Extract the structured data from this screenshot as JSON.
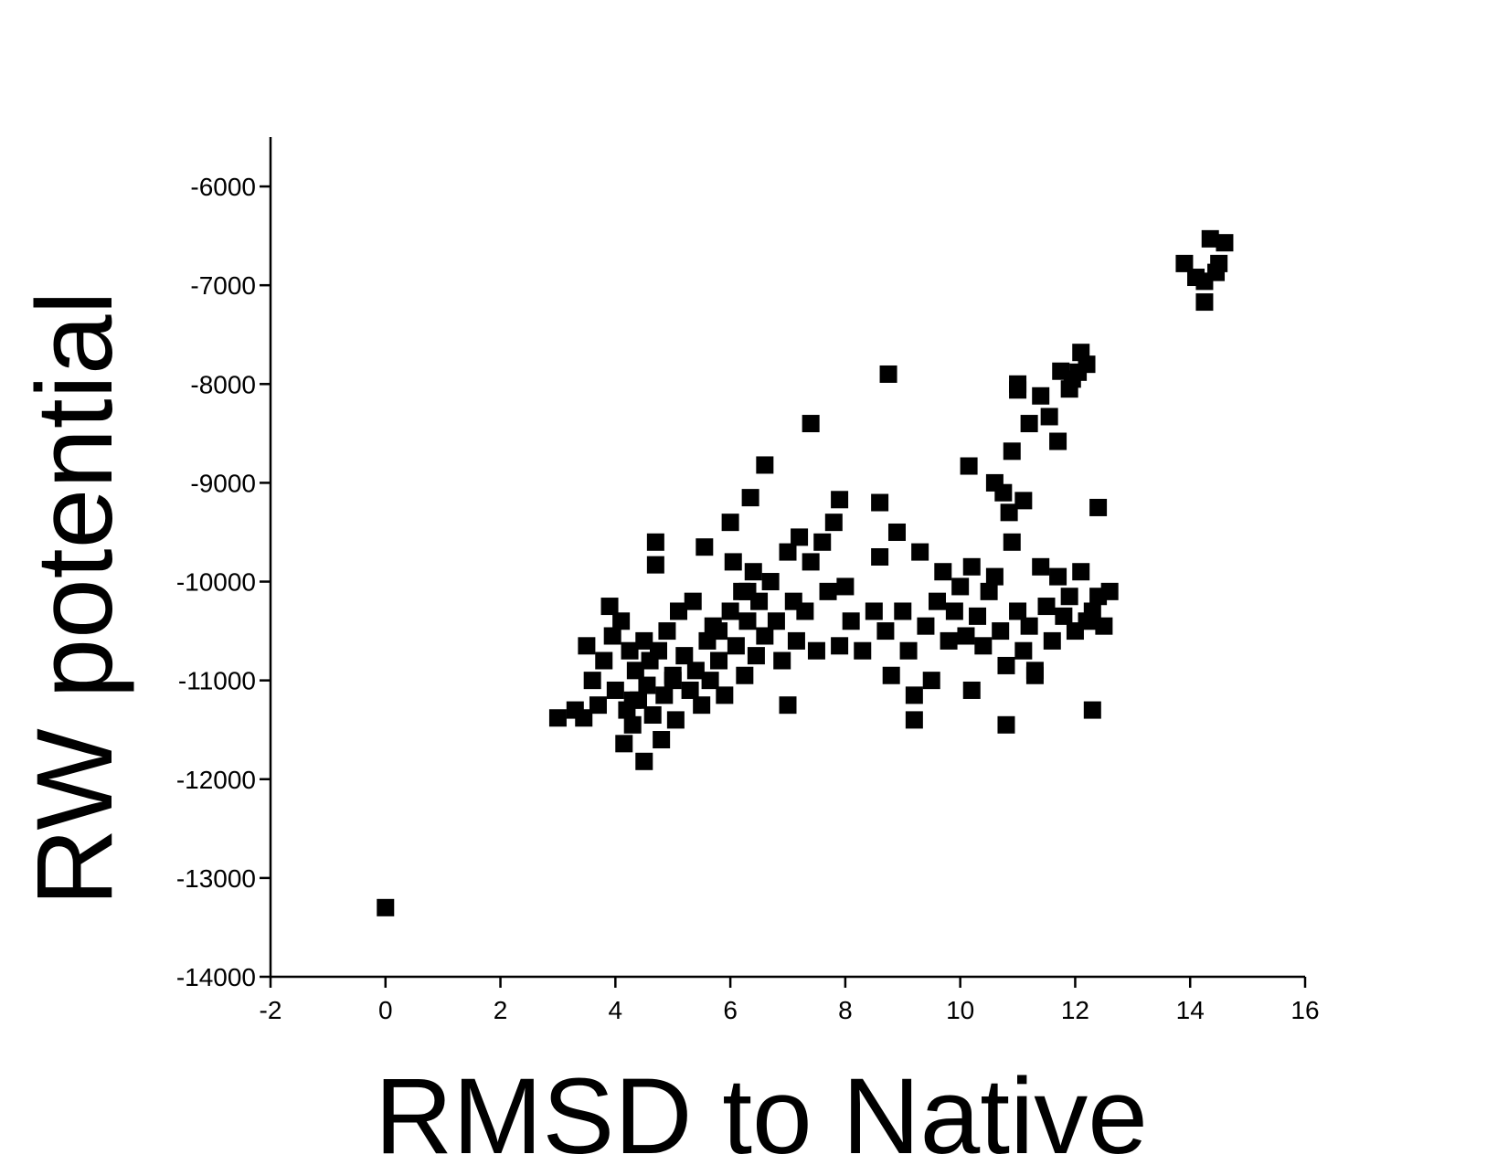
{
  "chart_data": {
    "type": "scatter",
    "x_label": "RMSD to Native",
    "y_label": "RW potential",
    "color": "#000000",
    "xlim": [
      -2,
      16
    ],
    "ylim": [
      -14000,
      -5500
    ],
    "xticks": [
      -2,
      0,
      2,
      4,
      6,
      8,
      10,
      12,
      14,
      16
    ],
    "yticks": [
      -14000,
      -13000,
      -12000,
      -11000,
      -10000,
      -9000,
      -8000,
      -7000,
      -6000
    ],
    "x": [
      0,
      8.75,
      7.4,
      6.6,
      10.15,
      6.35,
      7.9,
      8.6,
      12.4,
      6.0,
      5.55,
      4.7,
      4.7,
      3.0,
      3.3,
      3.45,
      4.15,
      4.5,
      4.8,
      3.9,
      10.9,
      11.0,
      11.0,
      11.2,
      11.4,
      11.55,
      11.7,
      11.75,
      11.9,
      12.05,
      12.1,
      12.2,
      11.95,
      14.35,
      14.6,
      13.9,
      14.1,
      14.25,
      14.45,
      14.5,
      14.25,
      10.6,
      10.75,
      10.85,
      11.1,
      3.5,
      3.6,
      3.7,
      3.8,
      3.95,
      4.0,
      4.1,
      4.2,
      4.25,
      4.3,
      4.35,
      4.4,
      4.5,
      4.55,
      4.6,
      4.65,
      4.75,
      4.85,
      4.9,
      5.0,
      5.05,
      5.1,
      5.2,
      5.3,
      5.35,
      5.4,
      5.5,
      5.6,
      5.65,
      5.7,
      5.8,
      5.9,
      6.0,
      6.05,
      6.1,
      6.2,
      6.25,
      6.3,
      6.4,
      6.45,
      6.5,
      6.6,
      6.7,
      6.8,
      6.9,
      7.0,
      7.1,
      7.15,
      7.2,
      7.3,
      7.4,
      7.5,
      7.6,
      7.7,
      7.8,
      7.9,
      8.0,
      8.1,
      8.3,
      8.5,
      8.6,
      8.7,
      8.8,
      8.9,
      9.0,
      9.1,
      9.2,
      9.3,
      9.4,
      9.5,
      9.6,
      9.7,
      9.8,
      9.9,
      10.0,
      10.1,
      10.2,
      10.3,
      10.4,
      10.5,
      10.6,
      10.7,
      10.8,
      10.9,
      11.0,
      11.1,
      11.2,
      11.3,
      11.4,
      11.5,
      11.6,
      11.7,
      11.8,
      11.9,
      12.0,
      12.1,
      12.2,
      12.3,
      12.4,
      12.5,
      12.6,
      4.3,
      5.0,
      5.8,
      6.3,
      7.0,
      9.2,
      10.2,
      10.8,
      11.3,
      12.3
    ],
    "values": [
      -13300,
      -7900,
      -8400,
      -8820,
      -8830,
      -9150,
      -9170,
      -9200,
      -9250,
      -9400,
      -9650,
      -9600,
      -9830,
      -11380,
      -11300,
      -11380,
      -11640,
      -11820,
      -11600,
      -10250,
      -8680,
      -8000,
      -8060,
      -8400,
      -8120,
      -8330,
      -8580,
      -7870,
      -8050,
      -7880,
      -7680,
      -7800,
      -7950,
      -6530,
      -6570,
      -6780,
      -6920,
      -6960,
      -6870,
      -6780,
      -7170,
      -9000,
      -9100,
      -9300,
      -9180,
      -10650,
      -11000,
      -11250,
      -10800,
      -10550,
      -11100,
      -10400,
      -11300,
      -10700,
      -11450,
      -10900,
      -11200,
      -10600,
      -11050,
      -10800,
      -11350,
      -10700,
      -11150,
      -10500,
      -10950,
      -11400,
      -10300,
      -10750,
      -11100,
      -10200,
      -10900,
      -11250,
      -10600,
      -11000,
      -10450,
      -10800,
      -11150,
      -10300,
      -9800,
      -10650,
      -10100,
      -10950,
      -10400,
      -9900,
      -10750,
      -10200,
      -10550,
      -10000,
      -10400,
      -10800,
      -9700,
      -10200,
      -10600,
      -9550,
      -10300,
      -9800,
      -10700,
      -9600,
      -10100,
      -9400,
      -10650,
      -10050,
      -10400,
      -10700,
      -10300,
      -9750,
      -10500,
      -10950,
      -9500,
      -10300,
      -10700,
      -11150,
      -9700,
      -10450,
      -11000,
      -10200,
      -9900,
      -10600,
      -10300,
      -10050,
      -10550,
      -9850,
      -10350,
      -10650,
      -10100,
      -9950,
      -10500,
      -10850,
      -9600,
      -10300,
      -10700,
      -10450,
      -10950,
      -9850,
      -10250,
      -10600,
      -9950,
      -10350,
      -10150,
      -10500,
      -9900,
      -10400,
      -10300,
      -10150,
      -10450,
      -10100,
      -11200,
      -11000,
      -10500,
      -10100,
      -11250,
      -11400,
      -11100,
      -11450,
      -10900,
      -11300
    ]
  }
}
